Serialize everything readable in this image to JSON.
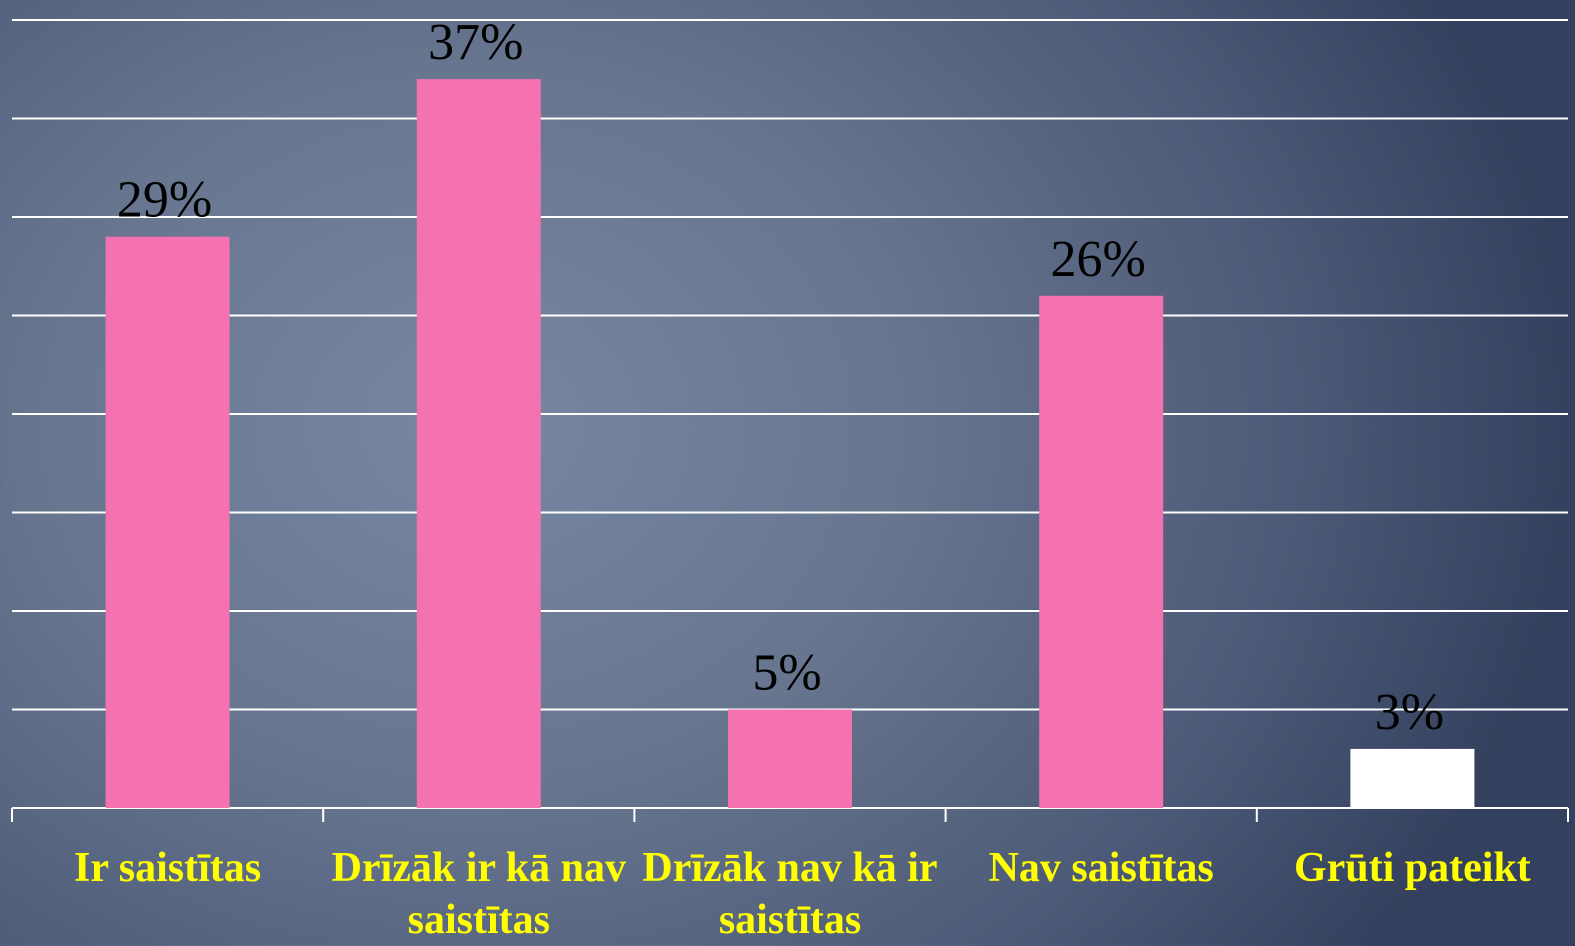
{
  "chart_data": {
    "type": "bar",
    "categories": [
      "Ir saistītas",
      "Drīzāk ir kā nav saistītas",
      "Drīzāk nav kā ir saistītas",
      "Nav saistītas",
      "Grūti pateikt"
    ],
    "values": [
      29,
      37,
      5,
      26,
      3
    ],
    "value_labels": [
      "29%",
      "37%",
      "5%",
      "26%",
      "3%"
    ],
    "colors": [
      "#f472b0",
      "#f472b0",
      "#f472b0",
      "#f472b0",
      "#ffffff"
    ],
    "ylim": [
      0,
      40
    ],
    "yticks": [
      0,
      5,
      10,
      15,
      20,
      25,
      30,
      35,
      40
    ],
    "grid": true
  }
}
